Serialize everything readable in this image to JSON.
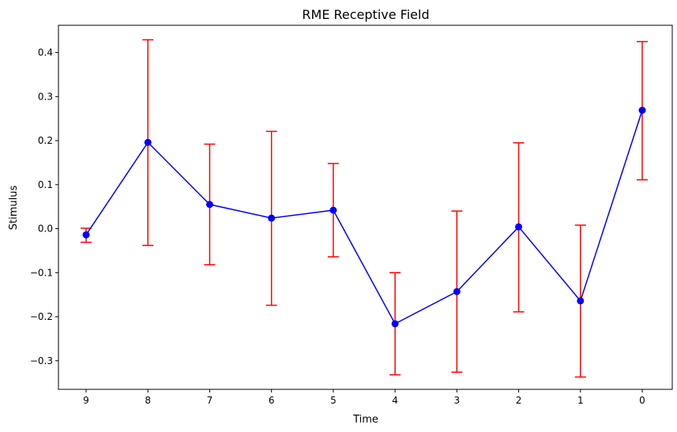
{
  "chart_data": {
    "type": "line",
    "title": "RME Receptive Field",
    "xlabel": "Time",
    "ylabel": "Stimulus",
    "categories": [
      "9",
      "8",
      "7",
      "6",
      "5",
      "4",
      "3",
      "2",
      "1",
      "0"
    ],
    "values": [
      -0.014,
      0.196,
      0.055,
      0.024,
      0.042,
      -0.216,
      -0.143,
      0.004,
      -0.164,
      0.269
    ],
    "error_low": [
      -0.031,
      -0.038,
      -0.082,
      -0.174,
      -0.064,
      -0.332,
      -0.326,
      -0.189,
      -0.337,
      0.111
    ],
    "error_high": [
      0.001,
      0.429,
      0.192,
      0.221,
      0.148,
      -0.1,
      0.04,
      0.195,
      0.008,
      0.425
    ],
    "ylim": [
      -0.365,
      0.462
    ],
    "yticks": [
      -0.3,
      -0.2,
      -0.1,
      0.0,
      0.1,
      0.2,
      0.3,
      0.4
    ],
    "ytick_labels": [
      "−0.3",
      "−0.2",
      "−0.1",
      "0.0",
      "0.1",
      "0.2",
      "0.3",
      "0.4"
    ],
    "grid": false,
    "colors": {
      "line": "#0000ff",
      "marker": "#0000ff",
      "errorbar": "#ff0000",
      "axes": "#000000"
    }
  }
}
